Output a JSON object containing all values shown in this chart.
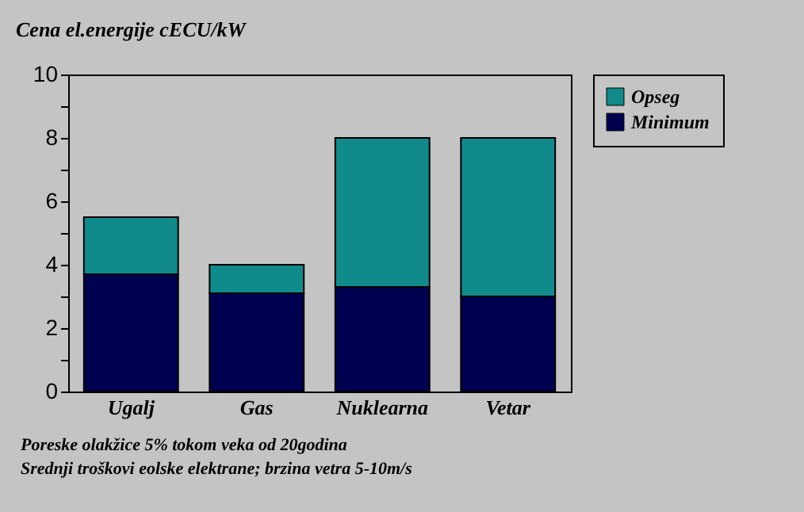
{
  "chart_data": {
    "type": "bar",
    "title": "Cena el.energije cECU/kW",
    "stacked": true,
    "categories": [
      "Ugalj",
      "Gas",
      "Nuklearna",
      "Vetar"
    ],
    "series": [
      {
        "name": "Minimum",
        "color": "#000050",
        "values": [
          3.7,
          3.1,
          3.3,
          3.0
        ]
      },
      {
        "name": "Opseg",
        "color": "#108a8a",
        "values": [
          1.8,
          0.9,
          4.7,
          5.0
        ]
      }
    ],
    "ylim": [
      0,
      10
    ],
    "yticks": [
      0,
      {
        "value": 1,
        "label": null
      },
      2,
      {
        "value": 3,
        "label": null
      },
      4,
      {
        "value": 5,
        "label": null
      },
      6,
      {
        "value": 7,
        "label": null
      },
      8,
      {
        "value": 9,
        "label": null
      },
      10
    ],
    "grid": false,
    "legend": "top right",
    "annotations": [
      "Poreske olakžice 5% tokom veka od 20godina",
      "Srednji troškovi eolske elektrane; brzina vetra 5-10m/s"
    ]
  }
}
